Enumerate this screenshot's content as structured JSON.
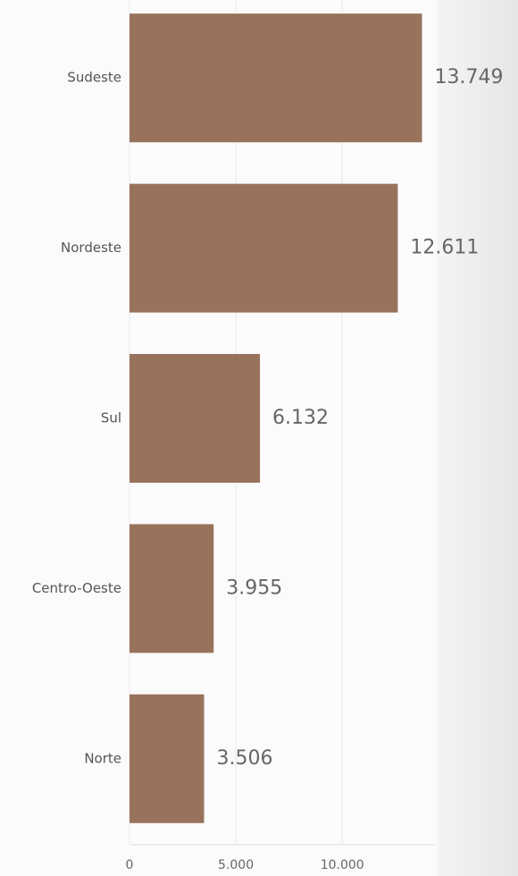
{
  "chart_data": {
    "type": "bar",
    "orientation": "horizontal",
    "categories": [
      "Sudeste",
      "Nordeste",
      "Sul",
      "Centro-Oeste",
      "Norte"
    ],
    "values": [
      13749,
      12611,
      6132,
      3955,
      3506
    ],
    "value_labels": [
      "13.749",
      "12.611",
      "6.132",
      "3.955",
      "3.506"
    ],
    "color": "#98725b",
    "xlim": [
      0,
      14400
    ],
    "xticks": [
      0,
      {
        "value": 5000,
        "label": "5.000"
      },
      {
        "value": 10000,
        "label": "10.000"
      }
    ],
    "grid": true
  }
}
